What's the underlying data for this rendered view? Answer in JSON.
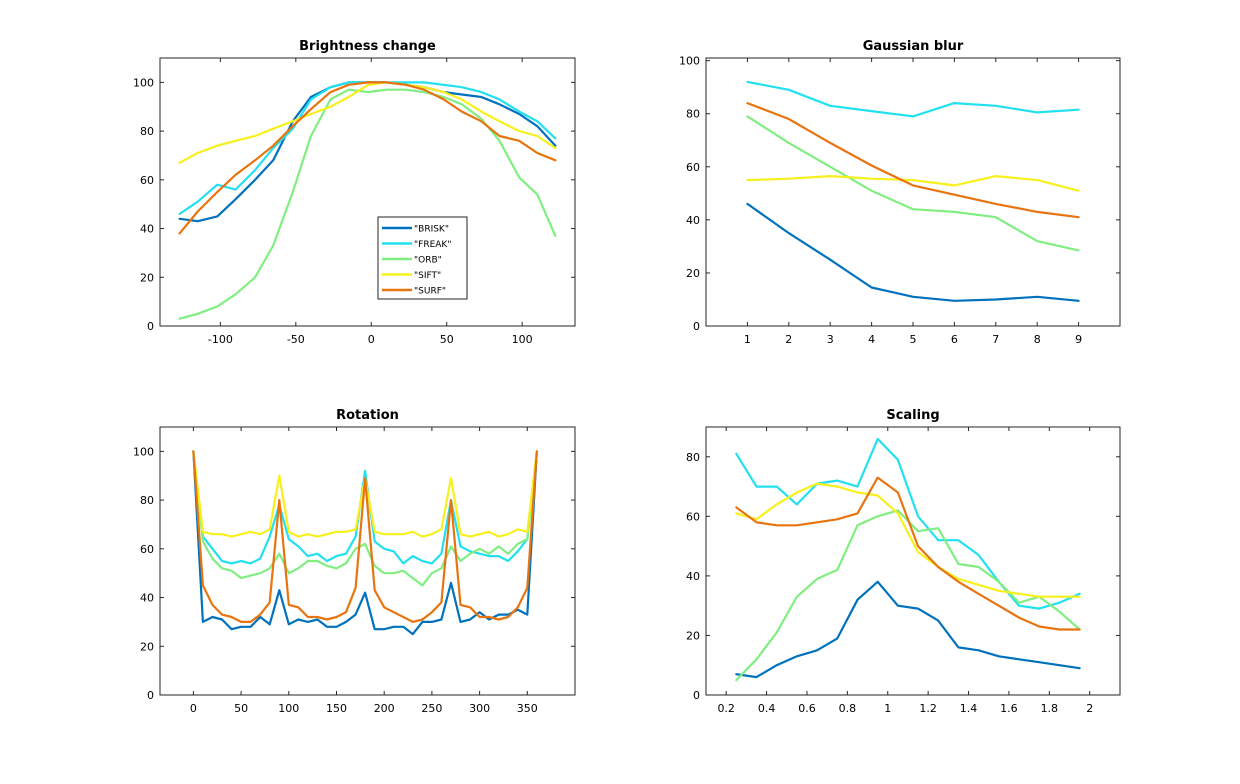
{
  "series_colors": {
    "BRISK": "#0072BD",
    "FREAK": "#22E0F0",
    "ORB": "#80EE80",
    "SIFT": "#F8F01C",
    "SURF": "#E87410"
  },
  "chart_data": [
    {
      "type": "line",
      "title": "Brightness change",
      "xlim": [
        -140,
        135
      ],
      "ylim": [
        0,
        110
      ],
      "xticks": [
        -100,
        -50,
        0,
        50,
        100
      ],
      "yticks": [
        0,
        20,
        40,
        60,
        80,
        100
      ],
      "grid": false,
      "legend": {
        "placement": "inside-bottom-center",
        "entries": [
          "\"BRISK\"",
          "\"FREAK\"",
          "\"ORB\"",
          "\"SIFT\"",
          "\"SURF\""
        ]
      },
      "x": [
        -127,
        -115,
        -102,
        -90,
        -77,
        -65,
        -52,
        -40,
        -27,
        -15,
        -2,
        10,
        23,
        35,
        48,
        60,
        73,
        85,
        98,
        110,
        122
      ],
      "series": [
        {
          "name": "BRISK",
          "values": [
            44,
            43,
            45,
            52,
            60,
            68,
            84,
            94,
            98,
            100,
            100,
            100,
            99,
            98,
            96,
            95,
            94,
            91,
            87,
            82,
            74
          ]
        },
        {
          "name": "FREAK",
          "values": [
            46,
            51,
            58,
            56,
            64,
            73,
            81,
            93,
            98,
            100,
            100,
            100,
            100,
            100,
            99,
            98,
            96,
            93,
            88,
            84,
            77
          ]
        },
        {
          "name": "ORB",
          "values": [
            3,
            5,
            8,
            13,
            20,
            33,
            55,
            78,
            93,
            97,
            96,
            97,
            97,
            96,
            94,
            91,
            85,
            76,
            61,
            54,
            37
          ]
        },
        {
          "name": "SIFT",
          "values": [
            67,
            71,
            74,
            76,
            78,
            81,
            84,
            87,
            90,
            94,
            99,
            100,
            99,
            98,
            96,
            93,
            88,
            84,
            80,
            78,
            73
          ]
        },
        {
          "name": "SURF",
          "values": [
            38,
            47,
            55,
            62,
            68,
            74,
            82,
            89,
            96,
            99,
            100,
            100,
            99,
            97,
            93,
            88,
            84,
            78,
            76,
            71,
            68
          ]
        }
      ]
    },
    {
      "type": "line",
      "title": "Gaussian blur",
      "xlim": [
        0,
        10
      ],
      "ylim": [
        0,
        101
      ],
      "xticks": [
        1,
        2,
        3,
        4,
        5,
        6,
        7,
        8,
        9
      ],
      "yticks": [
        0,
        20,
        40,
        60,
        80,
        100
      ],
      "grid": false,
      "x": [
        1,
        2,
        3,
        4,
        5,
        6,
        7,
        8,
        9
      ],
      "series": [
        {
          "name": "BRISK",
          "values": [
            46,
            35,
            25,
            14.5,
            11,
            9.5,
            10,
            11,
            9.5
          ]
        },
        {
          "name": "FREAK",
          "values": [
            92,
            89,
            83,
            81,
            79,
            84,
            83,
            80.5,
            81.5
          ]
        },
        {
          "name": "ORB",
          "values": [
            79,
            69,
            60,
            51,
            44,
            43,
            41,
            32,
            28.5
          ]
        },
        {
          "name": "SIFT",
          "values": [
            55,
            55.5,
            56.5,
            55.5,
            55,
            53,
            56.5,
            55,
            51
          ]
        },
        {
          "name": "SURF",
          "values": [
            84,
            78,
            69,
            60.5,
            53,
            49.5,
            46,
            43,
            41
          ]
        }
      ]
    },
    {
      "type": "line",
      "title": "Rotation",
      "xlim": [
        -35,
        400
      ],
      "ylim": [
        0,
        110
      ],
      "xticks": [
        0,
        50,
        100,
        150,
        200,
        250,
        300,
        350
      ],
      "yticks": [
        0,
        20,
        40,
        60,
        80,
        100
      ],
      "grid": false,
      "x": [
        0,
        10,
        20,
        30,
        40,
        50,
        60,
        70,
        80,
        90,
        100,
        110,
        120,
        130,
        140,
        150,
        160,
        170,
        180,
        190,
        200,
        210,
        220,
        230,
        240,
        250,
        260,
        270,
        280,
        290,
        300,
        310,
        320,
        330,
        340,
        350,
        360
      ],
      "series": [
        {
          "name": "BRISK",
          "values": [
            100,
            30,
            32,
            31,
            27,
            28,
            28,
            32,
            29,
            43,
            29,
            31,
            30,
            31,
            28,
            28,
            30,
            33,
            42,
            27,
            27,
            28,
            28,
            25,
            30,
            30,
            31,
            46,
            30,
            31,
            34,
            31,
            33,
            33,
            35,
            33,
            100
          ]
        },
        {
          "name": "FREAK",
          "values": [
            100,
            65,
            60,
            55,
            54,
            55,
            54,
            56,
            65,
            78,
            64,
            61,
            57,
            58,
            55,
            57,
            58,
            65,
            92,
            63,
            60,
            59,
            54,
            57,
            55,
            54,
            58,
            80,
            61,
            59,
            58,
            57,
            57,
            55,
            59,
            64,
            100
          ]
        },
        {
          "name": "ORB",
          "values": [
            100,
            63,
            56,
            52,
            51,
            48,
            49,
            50,
            52,
            58,
            50,
            52,
            55,
            55,
            53,
            52,
            54,
            60,
            62,
            53,
            50,
            50,
            51,
            48,
            45,
            50,
            52,
            61,
            55,
            58,
            60,
            58,
            61,
            58,
            62,
            64,
            100
          ]
        },
        {
          "name": "SIFT",
          "values": [
            100,
            67,
            66,
            66,
            65,
            66,
            67,
            66,
            68,
            90,
            67,
            65,
            66,
            65,
            66,
            67,
            67,
            68,
            89,
            67,
            66,
            66,
            66,
            67,
            65,
            66,
            68,
            89,
            66,
            65,
            66,
            67,
            65,
            66,
            68,
            67,
            100
          ]
        },
        {
          "name": "SURF",
          "values": [
            100,
            45,
            37,
            33,
            32,
            30,
            30,
            33,
            38,
            80,
            37,
            36,
            32,
            32,
            31,
            32,
            34,
            44,
            89,
            43,
            36,
            34,
            32,
            30,
            31,
            34,
            38,
            80,
            37,
            36,
            32,
            32,
            31,
            32,
            36,
            44,
            100
          ]
        }
      ]
    },
    {
      "type": "line",
      "title": "Scaling",
      "xlim": [
        0.1,
        2.15
      ],
      "ylim": [
        0,
        90
      ],
      "xticks": [
        0.2,
        0.4,
        0.6,
        0.8,
        1,
        1.2,
        1.4,
        1.6,
        1.8,
        2
      ],
      "yticks": [
        0,
        20,
        40,
        60,
        80
      ],
      "grid": false,
      "x": [
        0.25,
        0.35,
        0.45,
        0.55,
        0.65,
        0.75,
        0.85,
        0.95,
        1.05,
        1.15,
        1.25,
        1.35,
        1.45,
        1.55,
        1.65,
        1.75,
        1.85,
        1.95
      ],
      "series": [
        {
          "name": "BRISK",
          "values": [
            7,
            6,
            10,
            13,
            15,
            19,
            32,
            38,
            30,
            29,
            25,
            16,
            15,
            13,
            12,
            11,
            10,
            9
          ]
        },
        {
          "name": "FREAK",
          "values": [
            81,
            70,
            70,
            64,
            71,
            72,
            70,
            86,
            79,
            60,
            52,
            52,
            47,
            38,
            30,
            29,
            31,
            34
          ]
        },
        {
          "name": "ORB",
          "values": [
            5,
            12,
            21,
            33,
            39,
            42,
            57,
            60,
            62,
            55,
            56,
            44,
            43,
            38,
            31,
            33,
            28,
            22
          ]
        },
        {
          "name": "SIFT",
          "values": [
            61,
            59,
            64,
            68,
            71,
            70,
            68,
            67,
            61,
            48,
            43,
            39,
            37,
            35,
            34,
            33,
            33,
            33
          ]
        },
        {
          "name": "SURF",
          "values": [
            63,
            58,
            57,
            57,
            58,
            59,
            61,
            73,
            68,
            50,
            43,
            38,
            34,
            30,
            26,
            23,
            22,
            22
          ]
        }
      ]
    }
  ]
}
